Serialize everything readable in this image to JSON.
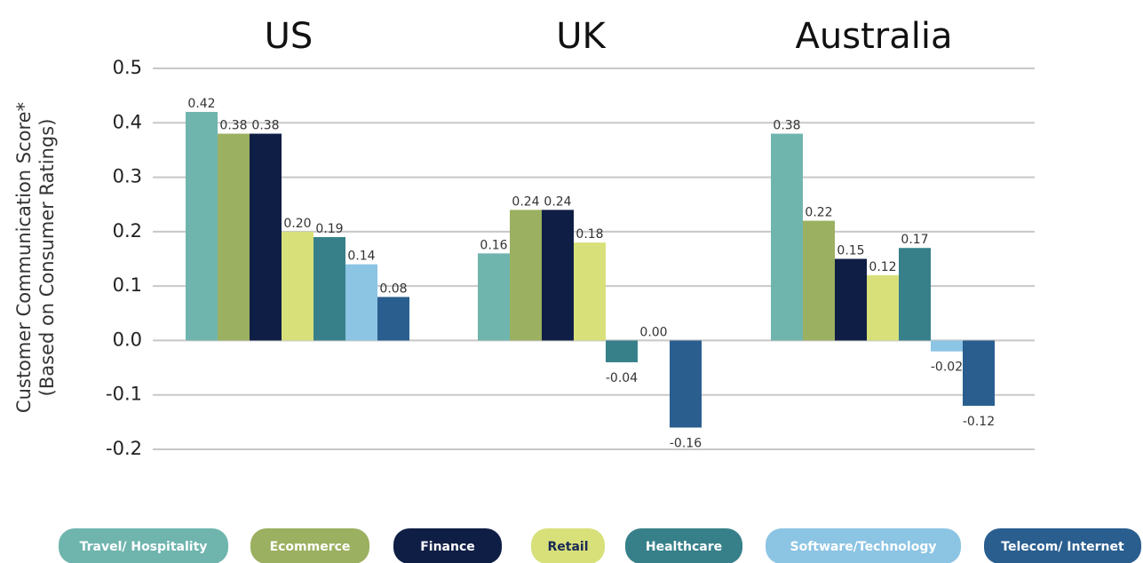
{
  "chart_data": {
    "type": "bar",
    "y_label_lines": [
      "Customer Communication Score*",
      "(Based on Consumer Ratings)"
    ],
    "categories": [
      "US",
      "UK",
      "Australia"
    ],
    "series": [
      {
        "name": "Travel/ Hospitality",
        "color": "#6fb5ae",
        "values": [
          0.42,
          0.16,
          0.38
        ],
        "value_labels": [
          "0.42",
          "0.16",
          "0.38"
        ]
      },
      {
        "name": "Ecommerce",
        "color": "#9bb060",
        "values": [
          0.38,
          0.24,
          0.22
        ],
        "value_labels": [
          "0.38",
          "0.24",
          "0.22"
        ]
      },
      {
        "name": "Finance",
        "color": "#0f1e45",
        "values": [
          0.38,
          0.24,
          0.15
        ],
        "value_labels": [
          "0.38",
          "0.24",
          "0.15"
        ]
      },
      {
        "name": "Retail",
        "color": "#d8e07a",
        "values": [
          0.2,
          0.18,
          0.12
        ],
        "value_labels": [
          "0.20",
          "0.18",
          "0.12"
        ]
      },
      {
        "name": "Healthcare",
        "color": "#37808a",
        "values": [
          0.19,
          -0.04,
          0.17
        ],
        "value_labels": [
          "0.19",
          "-0.04",
          "0.17"
        ]
      },
      {
        "name": "Software/Technology",
        "color": "#8cc4e4",
        "values": [
          0.14,
          0,
          -0.02
        ],
        "value_labels": [
          "0.14",
          "0.00",
          "-0.02"
        ]
      },
      {
        "name": "Telecom/ Internet",
        "color": "#2a5e8f",
        "values": [
          0.08,
          -0.16,
          -0.12
        ],
        "value_labels": [
          "0.08",
          "-0.16",
          "-0.12"
        ]
      }
    ],
    "ylim": [
      -0.2,
      0.5
    ],
    "yticks": [
      -0.2,
      -0.1,
      {
        "value": 0,
        "label": "0.0"
      },
      0.1,
      0.2,
      0.3,
      0.4,
      0.5
    ],
    "grid": true
  }
}
